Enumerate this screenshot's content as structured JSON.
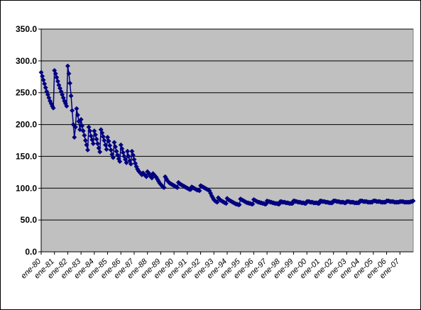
{
  "chart_data": {
    "type": "line",
    "title": "",
    "xlabel": "",
    "ylabel": "",
    "ylim": [
      0,
      350
    ],
    "y_ticks": [
      "0.0",
      "50.0",
      "100.0",
      "150.0",
      "200.0",
      "250.0",
      "300.0",
      "350.0"
    ],
    "x_tick_labels": [
      "ene-80",
      "ene-81",
      "ene-82",
      "ene-83",
      "ene-84",
      "ene-85",
      "ene-86",
      "ene-87",
      "ene-88",
      "ene-89",
      "ene-90",
      "ene-91",
      "ene-92",
      "ene-93",
      "ene-94",
      "ene-95",
      "ene-96",
      "ene-97",
      "ene-98",
      "ene-99",
      "ene-00",
      "ene-01",
      "ene-02",
      "ene-03",
      "ene-04",
      "ene-05",
      "ene-06",
      "ene-07"
    ],
    "grid": true,
    "legend": "none",
    "marker": "diamond",
    "colors": {
      "plot_bg": "#c0c0c0",
      "series": "#000080",
      "grid": "#000000"
    },
    "series": [
      {
        "values": [
          282,
          276,
          270,
          264,
          258,
          252,
          247,
          242,
          237,
          233,
          229,
          226,
          285,
          280,
          274,
          268,
          262,
          257,
          252,
          247,
          242,
          237,
          233,
          229,
          292,
          280,
          265,
          245,
          222,
          200,
          180,
          196,
          225,
          215,
          205,
          192,
          208,
          198,
          190,
          183,
          175,
          168,
          160,
          196,
          190,
          182,
          176,
          170,
          190,
          184,
          177,
          170,
          163,
          157,
          192,
          187,
          181,
          175,
          168,
          161,
          180,
          174,
          167,
          160,
          153,
          148,
          172,
          165,
          158,
          152,
          146,
          142,
          168,
          162,
          156,
          150,
          145,
          140,
          158,
          150,
          143,
          138,
          158,
          152,
          145,
          139,
          134,
          130,
          127,
          125,
          123,
          121,
          124,
          122,
          120,
          118,
          126,
          124,
          121,
          118,
          116,
          123,
          121,
          119,
          117,
          114,
          111,
          108,
          106,
          104,
          102,
          101,
          118,
          115,
          112,
          110,
          108,
          107,
          106,
          105,
          104,
          103,
          102,
          101,
          109,
          107,
          106,
          105,
          104,
          103,
          102,
          101,
          100,
          99,
          98,
          98,
          102,
          101,
          100,
          99,
          98,
          97,
          97,
          96,
          104,
          103,
          102,
          101,
          100,
          99,
          98,
          97,
          96,
          92,
          88,
          85,
          82,
          80,
          79,
          78,
          85,
          83,
          81,
          80,
          79,
          78,
          77,
          76,
          84,
          82,
          81,
          80,
          79,
          78,
          77,
          76,
          75,
          75,
          74,
          74,
          83,
          82,
          81,
          80,
          79,
          78,
          77,
          77,
          76,
          76,
          75,
          75,
          82,
          81,
          80,
          79,
          78,
          78,
          77,
          77,
          76,
          76,
          75,
          75,
          80,
          79,
          79,
          78,
          78,
          77,
          77,
          76,
          76,
          76,
          75,
          75,
          79,
          79,
          78,
          78,
          78,
          77,
          77,
          77,
          76,
          76,
          76,
          76,
          80,
          80,
          79,
          79,
          78,
          78,
          78,
          77,
          77,
          77,
          76,
          76,
          79,
          79,
          79,
          78,
          78,
          78,
          77,
          77,
          77,
          77,
          76,
          76,
          80,
          80,
          79,
          79,
          79,
          78,
          78,
          78,
          77,
          77,
          77,
          77,
          80,
          80,
          80,
          79,
          79,
          79,
          78,
          78,
          78,
          78,
          77,
          77,
          79,
          79,
          79,
          78,
          78,
          78,
          78,
          77,
          77,
          77,
          77,
          77,
          80,
          80,
          80,
          79,
          79,
          79,
          79,
          78,
          78,
          78,
          78,
          78,
          80,
          80,
          80,
          79,
          79,
          79,
          79,
          78,
          78,
          78,
          78,
          78,
          80,
          80,
          80,
          79,
          79,
          79,
          79,
          78,
          78,
          78,
          78,
          78,
          79,
          79,
          79,
          79,
          78,
          78,
          78,
          78,
          78,
          78,
          79,
          79,
          80
        ]
      }
    ]
  }
}
